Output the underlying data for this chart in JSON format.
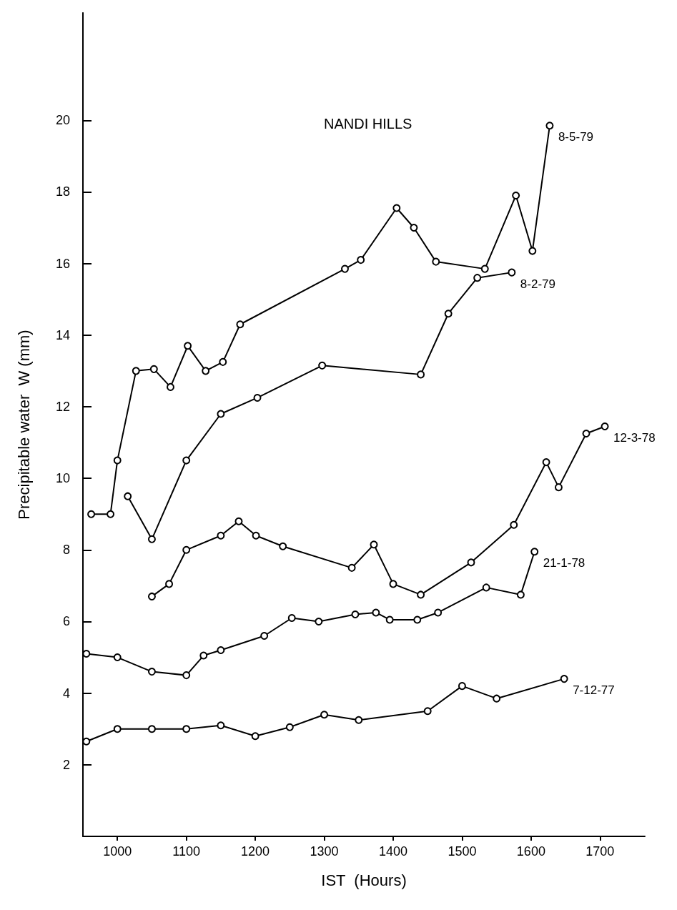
{
  "chart_data": {
    "type": "line",
    "title": "NANDI HILLS",
    "xlabel": "IST  (Hours)",
    "ylabel": "Precipitable water  W (mm)",
    "xlim": [
      950,
      1765
    ],
    "xticks": [
      1000,
      1100,
      1200,
      1300,
      1400,
      1500,
      1600,
      1700
    ],
    "ylim": [
      0,
      23
    ],
    "yticks": [
      2,
      4,
      6,
      8,
      10,
      12,
      14,
      16,
      18,
      20
    ],
    "grid": false,
    "legend": false,
    "marker": "circle",
    "line_style": "solid",
    "series": [
      {
        "name": "8-5-79",
        "color": "#000000",
        "x": [
          962,
          990,
          1000,
          1027,
          1053,
          1077,
          1102,
          1128,
          1153,
          1178,
          1330,
          1353,
          1405,
          1430,
          1462,
          1533,
          1578,
          1602,
          1627
        ],
        "values": [
          9.0,
          9.0,
          10.5,
          13.0,
          13.05,
          12.55,
          13.7,
          13.0,
          13.25,
          14.3,
          15.85,
          16.1,
          17.55,
          17.0,
          16.05,
          15.85,
          17.9,
          16.35,
          19.85
        ]
      },
      {
        "name": "8-2-79",
        "color": "#000000",
        "x": [
          1015,
          1050,
          1100,
          1150,
          1203,
          1297,
          1440,
          1480,
          1522,
          1572
        ],
        "values": [
          9.5,
          8.3,
          10.5,
          11.8,
          12.25,
          13.15,
          12.9,
          14.6,
          15.6,
          15.75
        ]
      },
      {
        "name": "12-3-78",
        "color": "#000000",
        "x": [
          1050,
          1075,
          1100,
          1150,
          1176,
          1201,
          1240,
          1340,
          1372,
          1400,
          1440,
          1513,
          1575,
          1622,
          1640,
          1680,
          1707
        ],
        "values": [
          6.7,
          7.05,
          8.0,
          8.4,
          8.8,
          8.4,
          8.1,
          7.5,
          8.15,
          7.05,
          6.75,
          7.65,
          8.7,
          10.45,
          9.75,
          11.25,
          11.45
        ]
      },
      {
        "name": "21-1-78",
        "color": "#000000",
        "x": [
          955,
          1000,
          1050,
          1100,
          1125,
          1150,
          1213,
          1253,
          1292,
          1345,
          1375,
          1395,
          1435,
          1465,
          1535,
          1585,
          1605
        ],
        "values": [
          5.1,
          5.0,
          4.6,
          4.5,
          5.05,
          5.2,
          5.6,
          6.1,
          6.0,
          6.2,
          6.25,
          6.05,
          6.05,
          6.25,
          6.95,
          6.75,
          7.95
        ]
      },
      {
        "name": "7-12-77",
        "color": "#000000",
        "x": [
          955,
          1000,
          1050,
          1100,
          1150,
          1200,
          1250,
          1300,
          1350,
          1450,
          1500,
          1550,
          1648
        ],
        "values": [
          2.65,
          3.0,
          3.0,
          3.0,
          3.1,
          2.8,
          3.05,
          3.4,
          3.25,
          3.5,
          4.2,
          3.85,
          4.4
        ]
      }
    ]
  }
}
